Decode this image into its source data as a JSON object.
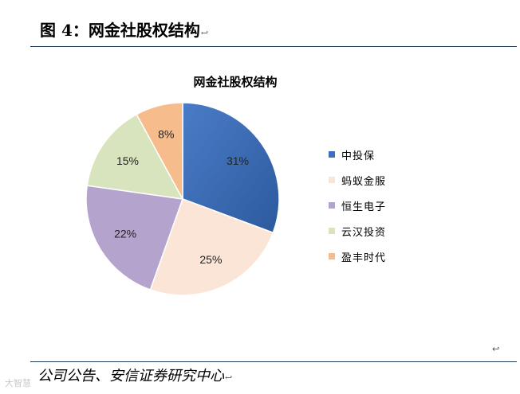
{
  "figure": {
    "heading": "图 4：网金社股权结构",
    "heading_mark": "↩",
    "source": "公司公告、安信证券研究中心",
    "source_mark": "↩",
    "stray_mark": "↩",
    "watermark": "大智慧"
  },
  "chart_data": {
    "type": "pie",
    "title": "网金社股权结构",
    "categories": [
      "中投保",
      "蚂蚁金服",
      "恒生电子",
      "云汉投资",
      "盈丰时代"
    ],
    "values": [
      31,
      25,
      22,
      15,
      8
    ],
    "value_labels": [
      "31%",
      "25%",
      "22%",
      "15%",
      "8%"
    ],
    "colors": [
      "#3d6fbd",
      "#fbe5d6",
      "#b4a3cc",
      "#d7e4bd",
      "#f7bc8b"
    ],
    "start_angle": "12 o'clock",
    "direction": "clockwise",
    "legend_position": "right"
  }
}
